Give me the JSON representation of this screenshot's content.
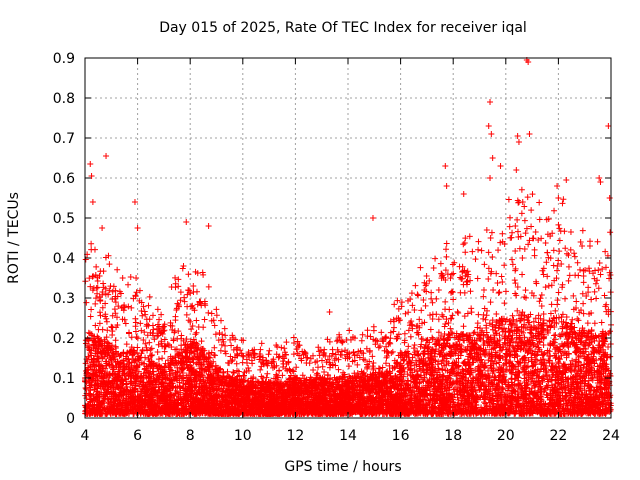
{
  "chart_data": {
    "type": "scatter",
    "title": "Day 015 of 2025, Rate Of TEC Index for receiver iqal",
    "xlabel": "GPS time / hours",
    "ylabel": "ROTI / TECUs",
    "xlim": [
      4,
      24
    ],
    "ylim": [
      0,
      0.9
    ],
    "x_ticks": [
      4,
      6,
      8,
      10,
      12,
      14,
      16,
      18,
      20,
      22,
      24
    ],
    "y_ticks": [
      0,
      0.1,
      0.2,
      0.3,
      0.4,
      0.5,
      0.6,
      0.7,
      0.8,
      0.9
    ],
    "x_tick_labels": [
      "4",
      "6",
      "8",
      "10",
      "12",
      "14",
      "16",
      "18",
      "20",
      "22",
      "24"
    ],
    "y_tick_labels": [
      "0",
      "0.1",
      "0.2",
      "0.3",
      "0.4",
      "0.5",
      "0.6",
      "0.7",
      "0.8",
      "0.9"
    ],
    "grid": true,
    "marker": "+",
    "color": "#ff0000",
    "envelope": {
      "hours": [
        4.0,
        4.5,
        5.0,
        5.5,
        6.0,
        6.5,
        7.0,
        7.5,
        8.0,
        8.5,
        9.0,
        9.5,
        10.0,
        10.5,
        11.0,
        11.5,
        12.0,
        12.5,
        13.0,
        13.5,
        14.0,
        14.5,
        15.0,
        15.5,
        16.0,
        16.5,
        17.0,
        17.5,
        18.0,
        18.5,
        19.0,
        19.5,
        20.0,
        20.5,
        21.0,
        21.5,
        22.0,
        22.5,
        23.0,
        23.5,
        24.0
      ],
      "typical_max": [
        0.38,
        0.35,
        0.32,
        0.28,
        0.3,
        0.24,
        0.22,
        0.3,
        0.34,
        0.3,
        0.22,
        0.17,
        0.16,
        0.15,
        0.15,
        0.15,
        0.17,
        0.16,
        0.17,
        0.16,
        0.18,
        0.17,
        0.19,
        0.2,
        0.28,
        0.3,
        0.34,
        0.36,
        0.38,
        0.36,
        0.4,
        0.42,
        0.44,
        0.46,
        0.45,
        0.44,
        0.48,
        0.42,
        0.38,
        0.36,
        0.38
      ]
    },
    "notable_points": [
      {
        "x": 4.2,
        "y": 0.635
      },
      {
        "x": 4.25,
        "y": 0.605
      },
      {
        "x": 4.3,
        "y": 0.54
      },
      {
        "x": 4.8,
        "y": 0.655
      },
      {
        "x": 4.65,
        "y": 0.475
      },
      {
        "x": 5.9,
        "y": 0.54
      },
      {
        "x": 6.0,
        "y": 0.475
      },
      {
        "x": 7.85,
        "y": 0.49
      },
      {
        "x": 8.7,
        "y": 0.48
      },
      {
        "x": 14.95,
        "y": 0.5
      },
      {
        "x": 13.3,
        "y": 0.265
      },
      {
        "x": 17.7,
        "y": 0.63
      },
      {
        "x": 17.75,
        "y": 0.58
      },
      {
        "x": 18.4,
        "y": 0.56
      },
      {
        "x": 19.4,
        "y": 0.79
      },
      {
        "x": 19.35,
        "y": 0.73
      },
      {
        "x": 19.45,
        "y": 0.71
      },
      {
        "x": 19.5,
        "y": 0.65
      },
      {
        "x": 19.4,
        "y": 0.6
      },
      {
        "x": 19.8,
        "y": 0.63
      },
      {
        "x": 20.45,
        "y": 0.705
      },
      {
        "x": 20.5,
        "y": 0.69
      },
      {
        "x": 20.4,
        "y": 0.62
      },
      {
        "x": 20.8,
        "y": 0.895
      },
      {
        "x": 20.85,
        "y": 0.89
      },
      {
        "x": 20.9,
        "y": 0.71
      },
      {
        "x": 21.95,
        "y": 0.58
      },
      {
        "x": 22.0,
        "y": 0.55
      },
      {
        "x": 22.3,
        "y": 0.595
      },
      {
        "x": 23.6,
        "y": 0.59
      },
      {
        "x": 23.55,
        "y": 0.6
      },
      {
        "x": 23.9,
        "y": 0.73
      },
      {
        "x": 23.95,
        "y": 0.55
      },
      {
        "x": 23.2,
        "y": 0.43
      },
      {
        "x": 22.9,
        "y": 0.43
      }
    ],
    "point_count": 9000
  }
}
